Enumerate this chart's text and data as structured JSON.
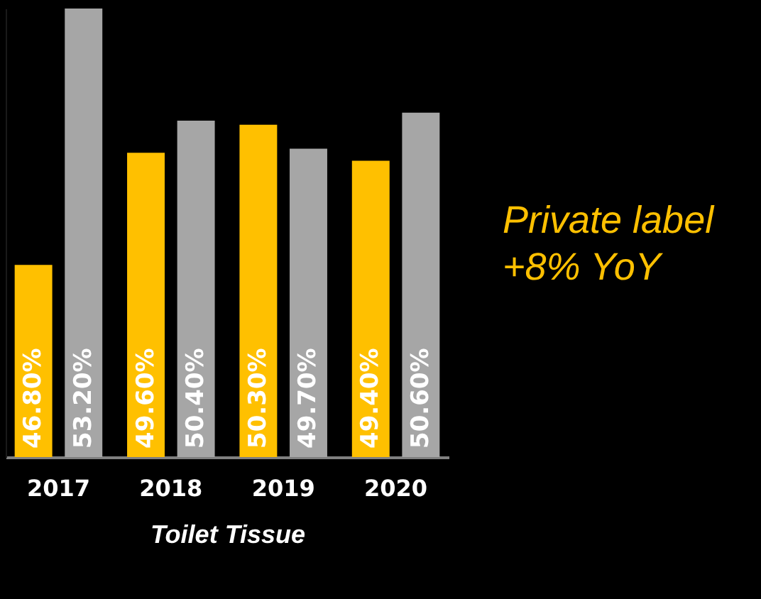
{
  "chart_data": {
    "type": "bar",
    "xlabel": "Toilet Tissue",
    "categories": [
      "2017",
      "2018",
      "2019",
      "2020"
    ],
    "series": [
      {
        "color": "#ffc000",
        "values": [
          46.8,
          49.6,
          50.3,
          49.4
        ],
        "value_labels": [
          "46.80%",
          "49.60%",
          "50.30%",
          "49.40%"
        ]
      },
      {
        "color": "#a6a6a6",
        "values": [
          53.2,
          50.4,
          49.7,
          50.6
        ],
        "value_labels": [
          "53.20%",
          "50.40%",
          "49.70%",
          "50.60%"
        ]
      }
    ],
    "ylim": [
      42,
      53.2
    ],
    "tick_labels": "x",
    "legend": false,
    "annotations": [
      "Private label",
      "+8% YoY"
    ]
  }
}
